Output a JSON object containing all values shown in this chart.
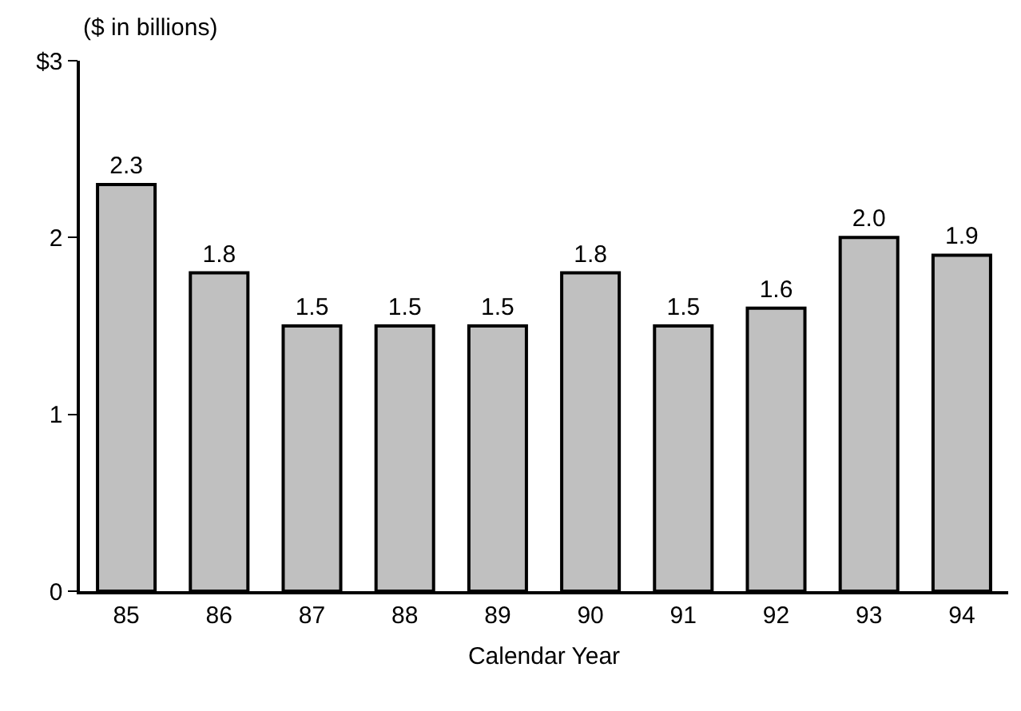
{
  "chart_data": {
    "type": "bar",
    "categories": [
      "85",
      "86",
      "87",
      "88",
      "89",
      "90",
      "91",
      "92",
      "93",
      "94"
    ],
    "values": [
      2.3,
      1.8,
      1.5,
      1.5,
      1.5,
      1.8,
      1.5,
      1.6,
      2.0,
      1.9
    ],
    "color": "#c0c0c0",
    "ylabel": "($ in billions)",
    "xlabel": "Calendar Year",
    "ylim": [
      0,
      3
    ],
    "yticks": [
      0,
      1,
      2,
      {
        "value": 3,
        "label": "$3"
      }
    ],
    "value_labels": [
      "2.3",
      "1.8",
      "1.5",
      "1.5",
      "1.5",
      "1.8",
      "1.5",
      "1.6",
      "2.0",
      "1.9"
    ]
  }
}
